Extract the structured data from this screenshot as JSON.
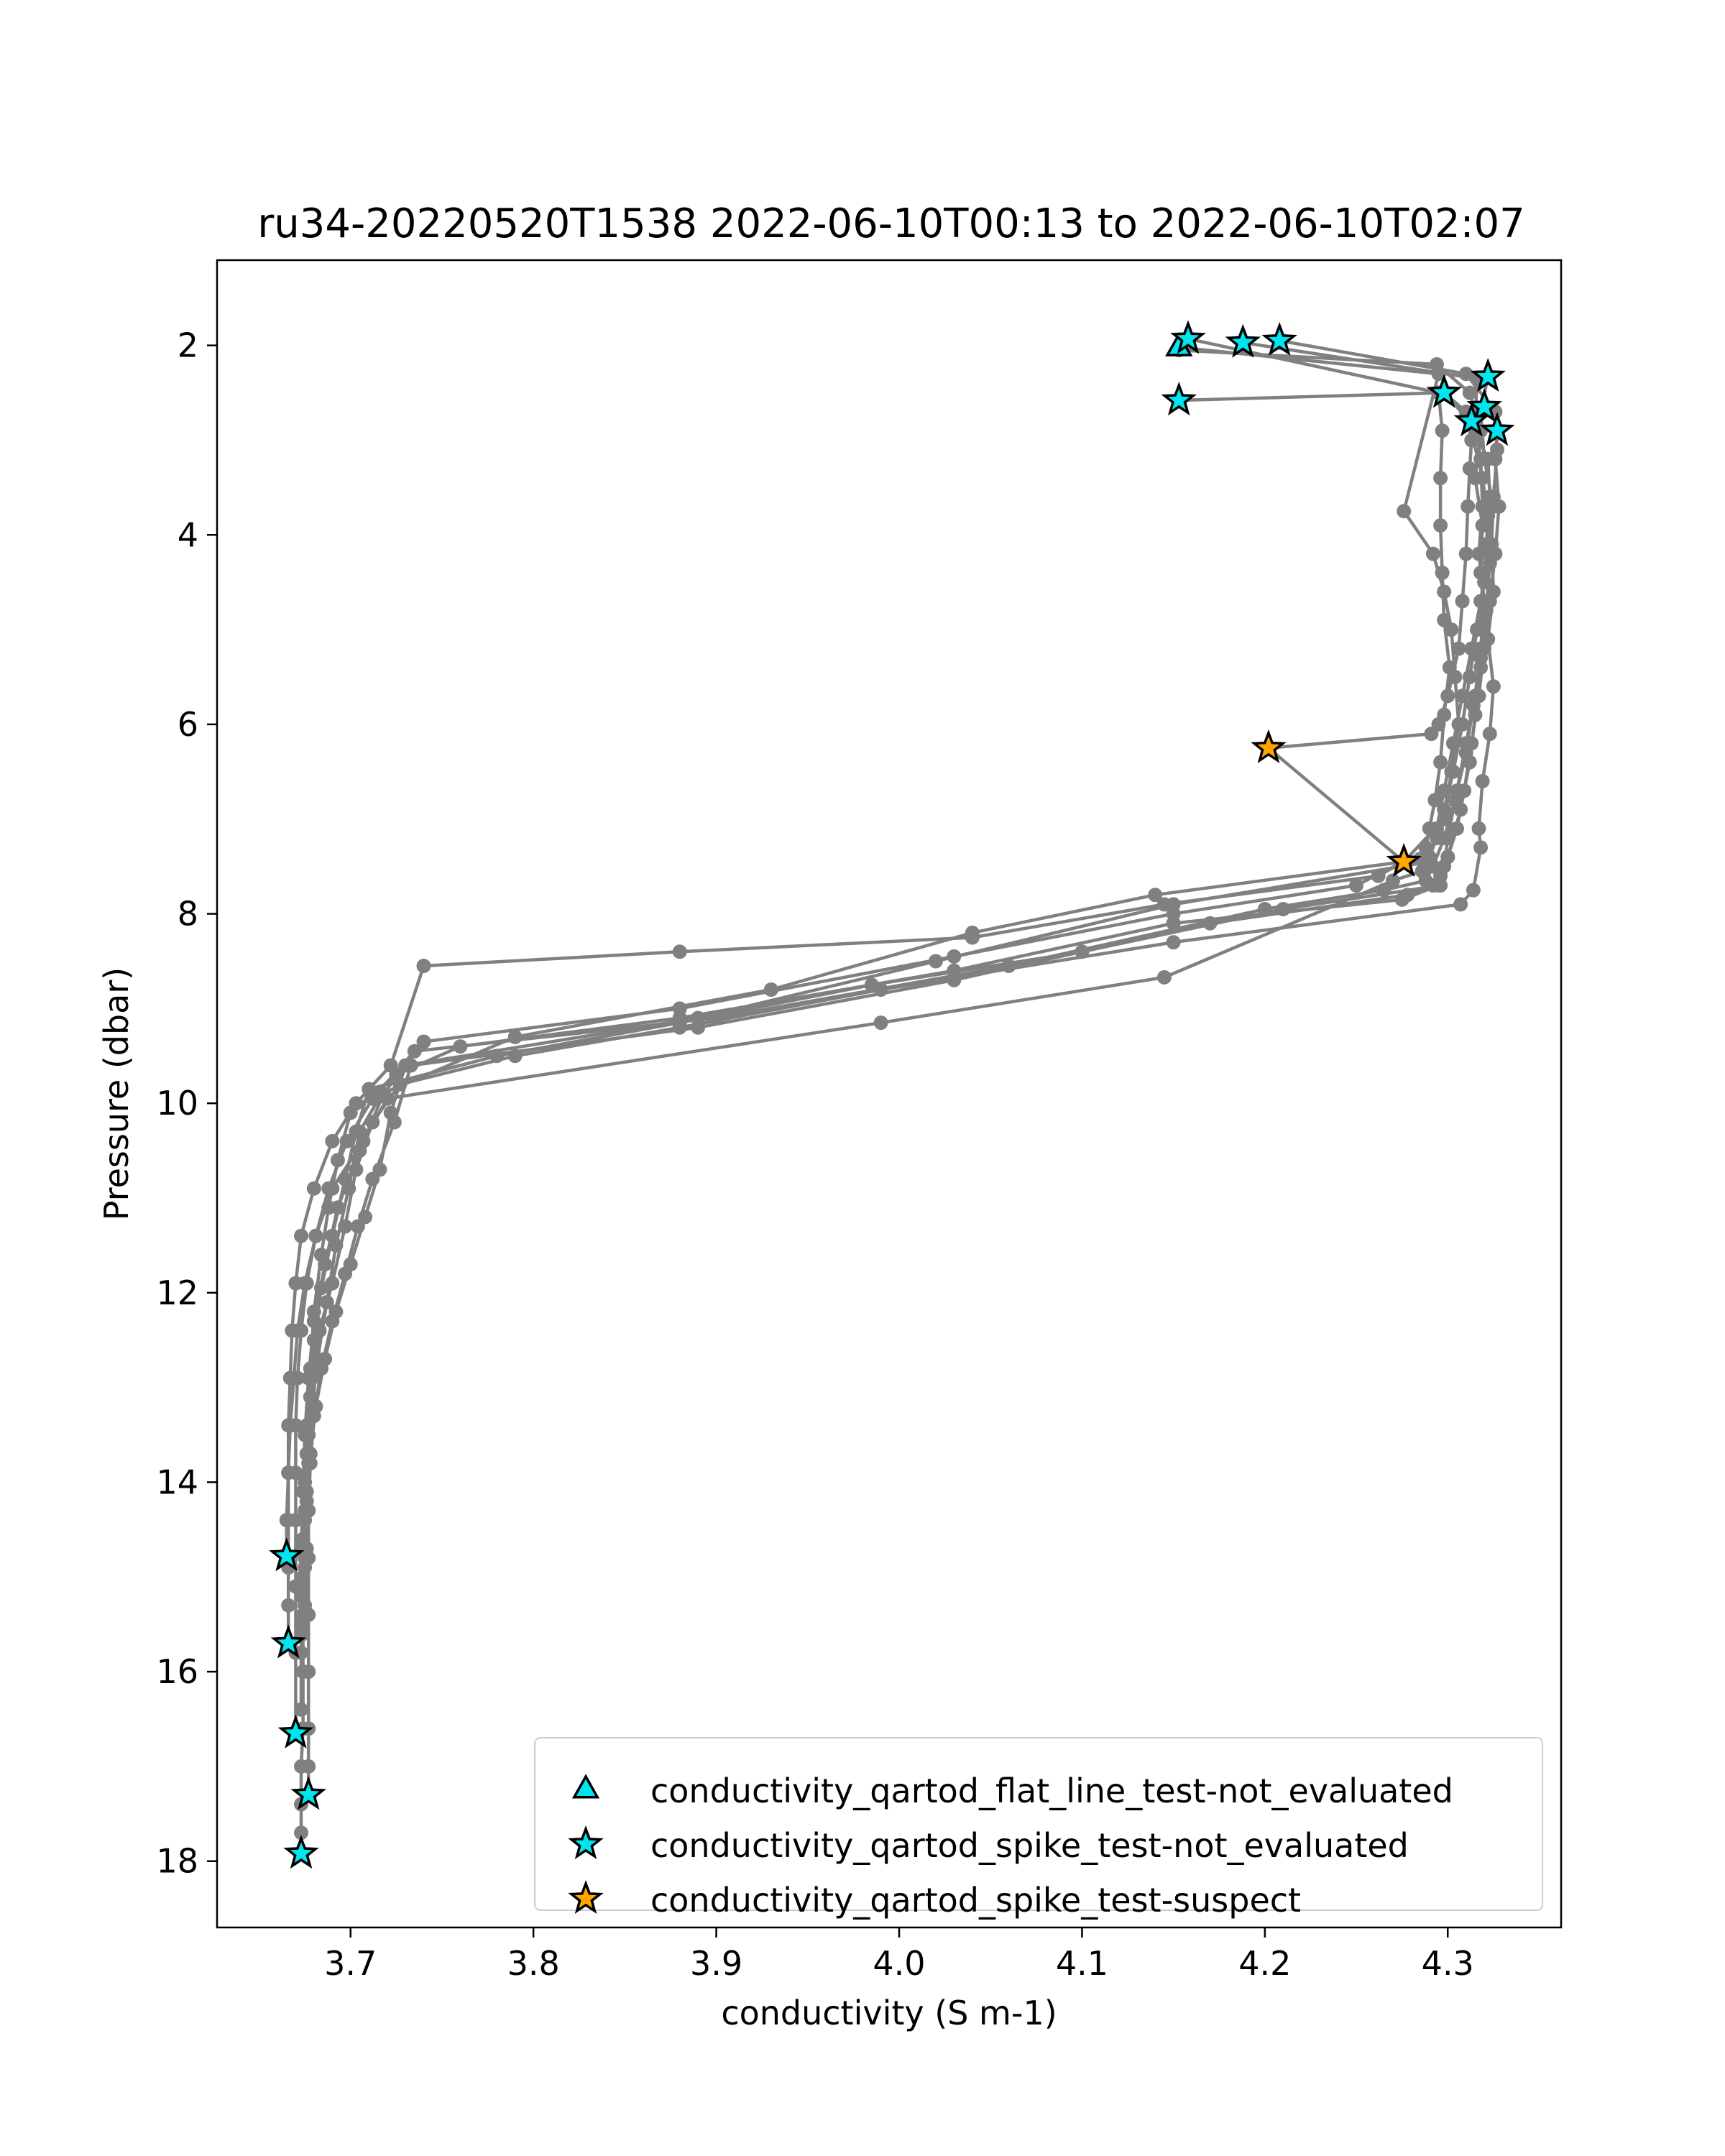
{
  "chart_data": {
    "type": "scatter",
    "title": "ru34-20220520T1538 2022-06-10T00:13 to 2022-06-10T02:07",
    "xlabel": "conductivity (S m-1)",
    "ylabel": "Pressure (dbar)",
    "xlim": [
      3.627,
      4.362
    ],
    "ylim": [
      18.7,
      1.1
    ],
    "y_inverted": true,
    "x_ticks": [
      3.7,
      3.8,
      3.9,
      4.0,
      4.1,
      4.2,
      4.3
    ],
    "x_tick_labels": [
      "3.7",
      "3.8",
      "3.9",
      "4.0",
      "4.1",
      "4.2",
      "4.3"
    ],
    "y_ticks": [
      2,
      4,
      6,
      8,
      10,
      12,
      14,
      16,
      18
    ],
    "y_tick_labels": [
      "2",
      "4",
      "6",
      "8",
      "10",
      "12",
      "14",
      "16",
      "18"
    ],
    "grid": false,
    "legend_position": "lower-right",
    "colors": {
      "profile": "#808080",
      "not_evaluated": "#00e5ee",
      "suspect": "#ffa500",
      "edge": "#000000"
    },
    "profiles": [
      {
        "x": [
          4.153,
          4.294,
          4.312,
          4.318,
          4.315,
          4.319,
          4.318,
          4.32,
          4.318,
          4.315,
          4.312,
          4.307,
          4.3,
          4.295,
          4.275,
          4.15,
          4.03,
          3.88,
          3.76,
          3.725,
          3.7,
          3.693,
          3.688,
          3.684,
          3.68,
          3.678,
          3.676,
          3.675,
          3.674,
          3.673,
          3.673,
          3.673
        ],
        "y": [
          2.05,
          2.2,
          2.5,
          2.9,
          3.4,
          3.9,
          4.4,
          4.9,
          5.4,
          5.9,
          6.4,
          6.9,
          7.4,
          7.7,
          7.85,
          8.1,
          8.6,
          9.1,
          9.4,
          9.7,
          10.1,
          10.6,
          11.1,
          11.6,
          12.2,
          12.8,
          13.4,
          14.0,
          14.6,
          15.2,
          15.8,
          16.4
        ]
      },
      {
        "x": [
          4.208,
          4.31,
          4.326,
          4.327,
          4.325,
          4.324,
          4.325,
          4.322,
          4.325,
          4.323,
          4.319,
          4.317,
          4.318,
          4.314,
          4.307,
          4.15,
          3.99,
          3.88,
          3.79,
          3.727,
          3.712,
          3.703,
          3.697,
          3.69,
          3.683,
          3.679,
          3.677,
          3.676,
          3.676,
          3.675
        ],
        "y": [
          1.95,
          2.3,
          2.7,
          3.1,
          3.6,
          4.1,
          4.6,
          5.1,
          5.6,
          6.1,
          6.6,
          7.1,
          7.3,
          7.75,
          7.9,
          8.3,
          8.8,
          9.2,
          9.5,
          9.8,
          10.2,
          10.7,
          11.3,
          11.9,
          12.4,
          12.9,
          13.5,
          14.1,
          14.7,
          15.3
        ]
      },
      {
        "x": [
          4.188,
          4.316,
          4.315,
          4.318,
          4.319,
          4.317,
          4.32,
          4.318,
          4.315,
          4.31,
          4.305,
          4.3,
          4.298,
          4.296,
          4.21,
          4.1,
          3.985,
          3.88,
          3.78,
          3.71,
          3.703,
          3.697,
          3.69,
          3.684,
          3.68,
          3.678,
          3.676,
          3.675,
          3.675,
          3.674
        ],
        "y": [
          1.97,
          2.35,
          2.8,
          3.2,
          3.7,
          4.2,
          4.7,
          5.2,
          5.7,
          6.2,
          6.7,
          7.2,
          7.5,
          7.7,
          7.95,
          8.4,
          8.75,
          9.15,
          9.5,
          9.85,
          10.3,
          10.8,
          11.4,
          11.95,
          12.5,
          13.1,
          13.7,
          14.3,
          14.9,
          15.5
        ]
      },
      {
        "x": [
          4.158,
          4.295,
          4.297,
          4.296,
          4.296,
          4.297,
          4.298,
          4.301,
          4.298,
          4.296,
          4.293,
          4.29,
          4.288,
          4.285,
          4.276,
          4.14,
          4.04,
          3.93,
          3.79,
          3.717,
          3.705,
          3.699,
          3.692,
          3.687,
          3.682,
          3.679,
          3.677,
          3.675,
          3.674,
          3.674
        ],
        "y": [
          1.93,
          2.5,
          2.9,
          3.4,
          3.9,
          4.4,
          4.9,
          5.4,
          5.9,
          6.4,
          6.8,
          7.1,
          7.3,
          7.42,
          7.45,
          7.8,
          8.2,
          8.8,
          9.3,
          9.9,
          10.3,
          10.9,
          11.5,
          12.1,
          12.7,
          13.2,
          13.8,
          14.4,
          15.0,
          15.6
        ]
      },
      {
        "x": [
          4.153,
          4.298,
          4.31,
          4.313,
          4.312,
          4.311,
          4.31,
          4.308,
          4.306,
          4.3,
          4.295,
          4.291,
          4.202,
          4.276,
          4.262,
          4.145,
          4.04,
          3.88,
          3.74,
          3.722,
          3.703,
          3.69,
          3.68,
          3.673,
          3.67,
          3.668,
          3.667,
          3.666,
          3.666,
          3.665,
          3.665
        ],
        "y": [
          2.58,
          2.5,
          2.7,
          3.0,
          3.3,
          3.7,
          4.2,
          4.7,
          5.2,
          5.7,
          6.0,
          6.1,
          6.25,
          7.45,
          7.6,
          7.9,
          8.25,
          8.4,
          8.55,
          9.6,
          10.0,
          10.4,
          10.9,
          11.4,
          11.9,
          12.4,
          12.9,
          13.4,
          13.9,
          14.4,
          14.78
        ]
      },
      {
        "x": [
          4.298,
          4.312,
          4.322,
          4.323,
          4.321,
          4.32,
          4.316,
          4.312,
          4.308,
          4.303,
          4.298,
          4.294,
          4.29,
          4.286,
          4.27,
          4.145,
          3.99,
          3.72,
          3.707,
          3.69,
          3.681,
          3.675,
          3.671,
          3.669,
          3.667,
          3.666,
          3.666,
          3.666,
          3.666,
          3.666
        ],
        "y": [
          2.5,
          2.8,
          3.2,
          3.6,
          4.1,
          4.5,
          5.0,
          5.5,
          6.0,
          6.5,
          6.9,
          7.2,
          7.4,
          7.55,
          7.65,
          8.67,
          9.15,
          9.95,
          10.4,
          10.9,
          11.4,
          11.9,
          12.4,
          12.9,
          13.4,
          13.9,
          14.4,
          14.9,
          15.3,
          15.7
        ]
      },
      {
        "x": [
          4.313,
          4.314,
          4.319,
          4.322,
          4.323,
          4.321,
          4.318,
          4.314,
          4.31,
          4.304,
          4.298,
          4.292,
          4.288,
          4.265,
          4.2,
          4.06,
          3.9,
          3.735,
          3.712,
          3.698,
          3.688,
          3.681,
          3.676,
          3.673,
          3.671,
          3.67,
          3.67,
          3.67,
          3.67,
          3.67,
          3.67
        ],
        "y": [
          2.8,
          3.0,
          3.4,
          3.8,
          4.3,
          4.8,
          5.3,
          5.8,
          6.3,
          6.8,
          7.2,
          7.5,
          7.65,
          7.75,
          7.95,
          8.55,
          9.1,
          9.45,
          9.95,
          10.4,
          10.9,
          11.4,
          11.9,
          12.4,
          12.9,
          13.4,
          13.9,
          14.4,
          15.1,
          15.8,
          16.65
        ]
      },
      {
        "x": [
          4.327,
          4.326,
          4.328,
          4.326,
          4.323,
          4.32,
          4.317,
          4.313,
          4.309,
          4.305,
          4.3,
          4.296,
          4.292,
          4.278,
          4.17,
          4.03,
          3.89,
          3.733,
          3.724,
          3.712,
          3.704,
          3.697,
          3.69,
          3.684,
          3.68,
          3.678,
          3.677,
          3.677,
          3.677,
          3.677,
          3.677,
          3.677,
          3.677
        ],
        "y": [
          2.9,
          3.2,
          3.7,
          4.2,
          4.7,
          5.2,
          5.7,
          6.2,
          6.7,
          7.1,
          7.4,
          7.6,
          7.7,
          7.8,
          8.1,
          8.7,
          9.2,
          9.6,
          10.2,
          10.8,
          11.3,
          11.8,
          12.3,
          12.8,
          13.3,
          13.8,
          14.3,
          14.8,
          15.4,
          16.0,
          16.6,
          17.0,
          17.3
        ]
      },
      {
        "x": [
          4.322,
          4.318,
          4.32,
          4.325,
          4.322,
          4.318,
          4.313,
          4.308,
          4.303,
          4.298,
          4.294,
          4.29,
          4.15,
          4.02,
          3.89,
          3.73,
          3.722,
          3.716,
          3.708,
          3.7,
          3.692,
          3.686,
          3.681,
          3.678,
          3.676,
          3.675,
          3.674,
          3.674,
          3.674,
          3.673,
          3.673,
          3.673,
          3.673
        ],
        "y": [
          2.33,
          2.7,
          3.2,
          3.7,
          4.2,
          4.7,
          5.2,
          5.7,
          6.2,
          6.7,
          7.1,
          7.45,
          7.9,
          8.5,
          9.1,
          9.6,
          10.1,
          10.7,
          11.2,
          11.7,
          12.2,
          12.7,
          13.2,
          13.7,
          14.2,
          14.8,
          15.4,
          16.0,
          16.6,
          17.0,
          17.4,
          17.7,
          17.92
        ]
      },
      {
        "x": [
          4.153,
          4.295,
          4.276,
          4.292,
          4.298,
          4.302,
          4.304,
          4.306,
          4.302,
          4.298,
          4.276,
          4.25,
          4.15,
          4.03,
          3.88,
          3.74,
          3.718,
          3.705,
          3.693,
          3.686,
          3.68,
          3.677,
          3.675,
          3.674,
          3.673
        ],
        "y": [
          2.02,
          2.3,
          3.75,
          4.2,
          4.6,
          5.0,
          5.5,
          6.0,
          6.5,
          7.0,
          7.45,
          7.7,
          8.0,
          8.45,
          9.0,
          9.35,
          9.9,
          10.5,
          11.1,
          11.7,
          12.3,
          12.9,
          13.5,
          14.1,
          14.7
        ]
      }
    ],
    "series": [
      {
        "name": "conductivity_qartod_flat_line_test-not_evaluated",
        "marker": "triangle",
        "color": "#00e5ee",
        "x": [
          4.153
        ],
        "y": [
          2.02
        ]
      },
      {
        "name": "conductivity_qartod_spike_test-not_evaluated",
        "marker": "star",
        "color": "#00e5ee",
        "x": [
          4.158,
          4.188,
          4.208,
          4.153,
          4.322,
          4.298,
          4.32,
          4.313,
          4.327,
          3.665,
          3.666,
          3.67,
          3.677,
          3.673
        ],
        "y": [
          1.93,
          1.97,
          1.95,
          2.58,
          2.33,
          2.5,
          2.65,
          2.8,
          2.9,
          14.78,
          15.7,
          16.65,
          17.3,
          17.92
        ]
      },
      {
        "name": "conductivity_qartod_spike_test-suspect",
        "marker": "star",
        "color": "#ffa500",
        "x": [
          4.202,
          4.276
        ],
        "y": [
          6.25,
          7.45
        ]
      }
    ]
  }
}
